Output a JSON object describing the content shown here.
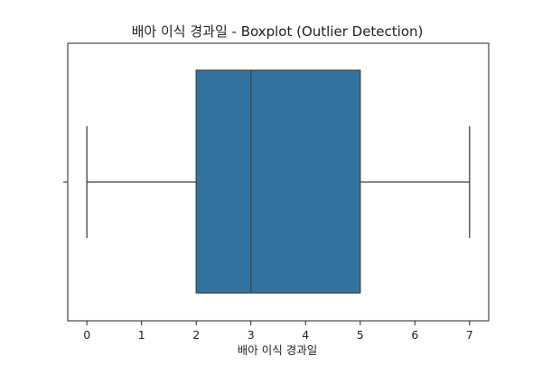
{
  "chart_data": {
    "type": "boxplot",
    "title": "배아 이식 경과일 - Boxplot (Outlier Detection)",
    "xlabel": "배아 이식 경과일",
    "ylabel": "",
    "orientation": "horizontal",
    "xlim": [
      -0.35,
      7.35
    ],
    "xticks": [
      0,
      1,
      2,
      3,
      4,
      5,
      6,
      7
    ],
    "xtick_labels": [
      "0",
      "1",
      "2",
      "3",
      "4",
      "5",
      "6",
      "7"
    ],
    "grid": false,
    "legend": "none",
    "series": [
      {
        "whisker_low": 0,
        "q1": 2,
        "median": 3,
        "q3": 5,
        "whisker_high": 7,
        "outliers": []
      }
    ],
    "colors": {
      "box_fill": "#3274a1",
      "box_edge": "#3f3f3f",
      "axis": "#222222"
    }
  }
}
